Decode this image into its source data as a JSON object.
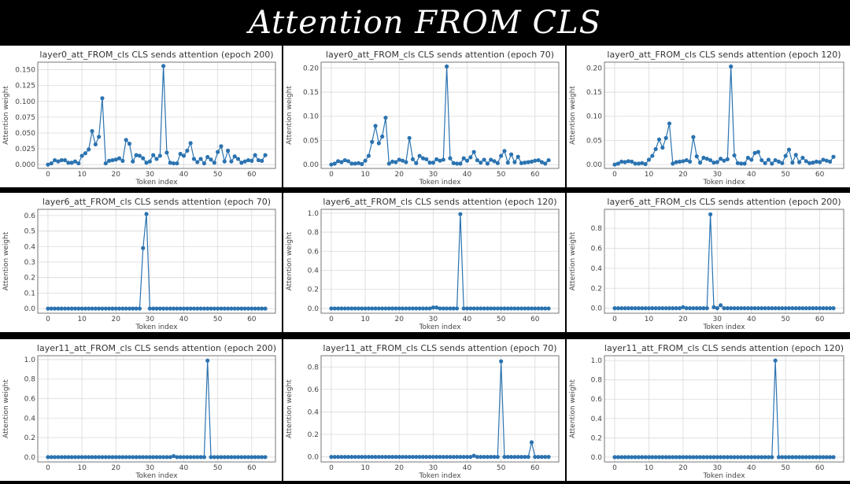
{
  "banner": {
    "title": "Attention FROM CLS"
  },
  "colors": {
    "series": "#2b73b0",
    "grid": "#d9d9d9",
    "frame": "#555555"
  },
  "chart_data": [
    {
      "type": "line",
      "row": 0,
      "title": "layer0_att_FROM_cls CLS sends attention (epoch 200)",
      "xlabel": "Token index",
      "ylabel": "Attention weight",
      "xlim": [
        -3,
        67
      ],
      "ylim": [
        -0.006,
        0.162
      ],
      "xticks": [
        0,
        10,
        20,
        30,
        40,
        50,
        60
      ],
      "yticks": [
        0.0,
        0.025,
        0.05,
        0.075,
        0.1,
        0.125,
        0.15
      ],
      "ytick_labels": [
        "0.000",
        "0.025",
        "0.050",
        "0.075",
        "0.100",
        "0.125",
        "0.150"
      ],
      "grid": true,
      "y": [
        0.0,
        0.002,
        0.007,
        0.005,
        0.007,
        0.007,
        0.003,
        0.003,
        0.005,
        0.002,
        0.014,
        0.018,
        0.024,
        0.053,
        0.032,
        0.044,
        0.105,
        0.002,
        0.006,
        0.007,
        0.008,
        0.01,
        0.006,
        0.039,
        0.033,
        0.005,
        0.015,
        0.014,
        0.01,
        0.003,
        0.005,
        0.015,
        0.009,
        0.014,
        0.156,
        0.019,
        0.003,
        0.002,
        0.002,
        0.017,
        0.014,
        0.022,
        0.034,
        0.009,
        0.004,
        0.009,
        0.002,
        0.012,
        0.008,
        0.003,
        0.02,
        0.029,
        0.005,
        0.022,
        0.005,
        0.013,
        0.009,
        0.003,
        0.005,
        0.007,
        0.006,
        0.015,
        0.007,
        0.006,
        0.015
      ]
    },
    {
      "type": "line",
      "row": 0,
      "title": "layer0_att_FROM_cls CLS sends attention (epoch 70)",
      "xlabel": "Token index",
      "ylabel": "Attention weight",
      "xlim": [
        -3,
        67
      ],
      "ylim": [
        -0.008,
        0.212
      ],
      "xticks": [
        0,
        10,
        20,
        30,
        40,
        50,
        60
      ],
      "yticks": [
        0.0,
        0.05,
        0.1,
        0.15,
        0.2
      ],
      "ytick_labels": [
        "0.00",
        "0.05",
        "0.10",
        "0.15",
        "0.20"
      ],
      "grid": true,
      "y": [
        0.0,
        0.002,
        0.007,
        0.005,
        0.009,
        0.007,
        0.002,
        0.002,
        0.003,
        0.001,
        0.008,
        0.018,
        0.047,
        0.08,
        0.044,
        0.058,
        0.097,
        0.002,
        0.006,
        0.005,
        0.01,
        0.008,
        0.005,
        0.055,
        0.011,
        0.003,
        0.018,
        0.013,
        0.011,
        0.004,
        0.004,
        0.011,
        0.008,
        0.01,
        0.203,
        0.013,
        0.003,
        0.002,
        0.002,
        0.013,
        0.008,
        0.015,
        0.026,
        0.009,
        0.004,
        0.01,
        0.002,
        0.01,
        0.007,
        0.003,
        0.018,
        0.028,
        0.004,
        0.021,
        0.005,
        0.016,
        0.003,
        0.004,
        0.005,
        0.006,
        0.008,
        0.009,
        0.005,
        0.002,
        0.009
      ]
    },
    {
      "type": "line",
      "row": 0,
      "title": "layer0_att_FROM_cls CLS sends attention (epoch 120)",
      "xlabel": "Token index",
      "ylabel": "Attention weight",
      "xlim": [
        -3,
        67
      ],
      "ylim": [
        -0.008,
        0.212
      ],
      "xticks": [
        0,
        10,
        20,
        30,
        40,
        50,
        60
      ],
      "yticks": [
        0.0,
        0.05,
        0.1,
        0.15,
        0.2
      ],
      "ytick_labels": [
        "0.00",
        "0.05",
        "0.10",
        "0.15",
        "0.20"
      ],
      "grid": true,
      "y": [
        0.0,
        0.002,
        0.006,
        0.005,
        0.007,
        0.006,
        0.002,
        0.002,
        0.003,
        0.001,
        0.01,
        0.018,
        0.032,
        0.052,
        0.035,
        0.055,
        0.085,
        0.002,
        0.005,
        0.006,
        0.007,
        0.009,
        0.006,
        0.057,
        0.017,
        0.004,
        0.014,
        0.012,
        0.009,
        0.004,
        0.005,
        0.012,
        0.008,
        0.011,
        0.203,
        0.019,
        0.003,
        0.002,
        0.002,
        0.014,
        0.01,
        0.024,
        0.026,
        0.009,
        0.003,
        0.01,
        0.002,
        0.009,
        0.006,
        0.003,
        0.018,
        0.031,
        0.004,
        0.02,
        0.005,
        0.014,
        0.007,
        0.003,
        0.004,
        0.006,
        0.005,
        0.01,
        0.008,
        0.006,
        0.016
      ]
    },
    {
      "type": "line",
      "row": 1,
      "title": "layer6_att_FROM_cls CLS sends attention (epoch 70)",
      "xlabel": "Token index",
      "ylabel": "Attention weight",
      "xlim": [
        -3,
        67
      ],
      "ylim": [
        -0.03,
        0.64
      ],
      "xticks": [
        0,
        10,
        20,
        30,
        40,
        50,
        60
      ],
      "yticks": [
        0.0,
        0.1,
        0.2,
        0.3,
        0.4,
        0.5,
        0.6
      ],
      "ytick_labels": [
        "0.0",
        "0.1",
        "0.2",
        "0.3",
        "0.4",
        "0.5",
        "0.6"
      ],
      "grid": true,
      "y": [
        0,
        0,
        0,
        0,
        0,
        0,
        0,
        0,
        0,
        0,
        0,
        0,
        0,
        0,
        0,
        0,
        0,
        0,
        0,
        0,
        0,
        0,
        0,
        0,
        0,
        0,
        0,
        0,
        0.39,
        0.61,
        0,
        0,
        0,
        0,
        0,
        0,
        0,
        0,
        0,
        0,
        0,
        0,
        0,
        0,
        0,
        0,
        0,
        0,
        0,
        0,
        0,
        0,
        0,
        0,
        0,
        0,
        0,
        0,
        0,
        0,
        0,
        0,
        0,
        0,
        0
      ]
    },
    {
      "type": "line",
      "row": 1,
      "title": "layer6_att_FROM_cls CLS sends attention (epoch 120)",
      "xlabel": "Token index",
      "ylabel": "Attention weight",
      "xlim": [
        -3,
        67
      ],
      "ylim": [
        -0.05,
        1.04
      ],
      "xticks": [
        0,
        10,
        20,
        30,
        40,
        50,
        60
      ],
      "yticks": [
        0.0,
        0.2,
        0.4,
        0.6,
        0.8,
        1.0
      ],
      "ytick_labels": [
        "0.0",
        "0.2",
        "0.4",
        "0.6",
        "0.8",
        "1.0"
      ],
      "grid": true,
      "y": [
        0,
        0,
        0,
        0,
        0,
        0,
        0,
        0,
        0,
        0,
        0,
        0,
        0,
        0,
        0,
        0,
        0,
        0,
        0,
        0,
        0,
        0,
        0,
        0,
        0,
        0,
        0,
        0,
        0,
        0,
        0.01,
        0.01,
        0,
        0,
        0,
        0,
        0,
        0,
        0.99,
        0,
        0,
        0,
        0,
        0,
        0,
        0,
        0,
        0,
        0,
        0,
        0,
        0,
        0,
        0,
        0,
        0,
        0,
        0,
        0,
        0,
        0,
        0,
        0,
        0,
        0
      ]
    },
    {
      "type": "line",
      "row": 1,
      "title": "layer6_att_FROM_cls CLS sends attention (epoch 200)",
      "xlabel": "Token index",
      "ylabel": "Attention weight",
      "xlim": [
        -3,
        67
      ],
      "ylim": [
        -0.05,
        0.99
      ],
      "xticks": [
        0,
        10,
        20,
        30,
        40,
        50,
        60
      ],
      "yticks": [
        0.0,
        0.2,
        0.4,
        0.6,
        0.8
      ],
      "ytick_labels": [
        "0.0",
        "0.2",
        "0.4",
        "0.6",
        "0.8"
      ],
      "grid": true,
      "y": [
        0,
        0,
        0,
        0,
        0,
        0,
        0,
        0,
        0,
        0,
        0,
        0,
        0,
        0,
        0,
        0,
        0,
        0,
        0,
        0,
        0.01,
        0,
        0,
        0,
        0,
        0,
        0,
        0,
        0.94,
        0.01,
        0,
        0.03,
        0,
        0,
        0,
        0,
        0,
        0,
        0,
        0,
        0,
        0,
        0,
        0,
        0,
        0,
        0,
        0,
        0,
        0,
        0,
        0,
        0,
        0,
        0,
        0,
        0,
        0,
        0,
        0,
        0,
        0,
        0,
        0,
        0
      ]
    },
    {
      "type": "line",
      "row": 2,
      "title": "layer11_att_FROM_cls CLS sends attention (epoch 200)",
      "xlabel": "Token index",
      "ylabel": "Attention weight",
      "xlim": [
        -3,
        67
      ],
      "ylim": [
        -0.05,
        1.04
      ],
      "xticks": [
        0,
        10,
        20,
        30,
        40,
        50,
        60
      ],
      "yticks": [
        0.0,
        0.2,
        0.4,
        0.6,
        0.8,
        1.0
      ],
      "ytick_labels": [
        "0.0",
        "0.2",
        "0.4",
        "0.6",
        "0.8",
        "1.0"
      ],
      "grid": true,
      "y": [
        0,
        0,
        0,
        0,
        0,
        0,
        0,
        0,
        0,
        0,
        0,
        0,
        0,
        0,
        0,
        0,
        0,
        0,
        0,
        0,
        0,
        0,
        0,
        0,
        0,
        0,
        0,
        0,
        0,
        0,
        0,
        0,
        0,
        0,
        0,
        0,
        0,
        0.01,
        0,
        0,
        0,
        0,
        0,
        0,
        0,
        0,
        0,
        0.99,
        0,
        0,
        0,
        0,
        0,
        0,
        0,
        0,
        0,
        0,
        0,
        0,
        0,
        0,
        0,
        0,
        0
      ]
    },
    {
      "type": "line",
      "row": 2,
      "title": "layer11_att_FROM_cls CLS sends attention (epoch 70)",
      "xlabel": "Token index",
      "ylabel": "Attention weight",
      "xlim": [
        -3,
        67
      ],
      "ylim": [
        -0.045,
        0.9
      ],
      "xticks": [
        0,
        10,
        20,
        30,
        40,
        50,
        60
      ],
      "yticks": [
        0.0,
        0.2,
        0.4,
        0.6,
        0.8
      ],
      "ytick_labels": [
        "0.0",
        "0.2",
        "0.4",
        "0.6",
        "0.8"
      ],
      "grid": true,
      "y": [
        0,
        0,
        0,
        0,
        0,
        0,
        0,
        0,
        0,
        0,
        0,
        0,
        0,
        0,
        0,
        0,
        0,
        0,
        0,
        0,
        0,
        0,
        0,
        0,
        0,
        0,
        0,
        0,
        0,
        0,
        0,
        0,
        0,
        0,
        0,
        0,
        0,
        0,
        0,
        0,
        0,
        0,
        0.01,
        0,
        0,
        0,
        0,
        0,
        0,
        0,
        0.85,
        0,
        0,
        0,
        0,
        0,
        0,
        0,
        0,
        0.13,
        0,
        0,
        0,
        0,
        0
      ]
    },
    {
      "type": "line",
      "row": 2,
      "title": "layer11_att_FROM_cls CLS sends attention (epoch 120)",
      "xlabel": "Token index",
      "ylabel": "Attention weight",
      "xlim": [
        -3,
        67
      ],
      "ylim": [
        -0.05,
        1.05
      ],
      "xticks": [
        0,
        10,
        20,
        30,
        40,
        50,
        60
      ],
      "yticks": [
        0.0,
        0.2,
        0.4,
        0.6,
        0.8,
        1.0
      ],
      "ytick_labels": [
        "0.0",
        "0.2",
        "0.4",
        "0.6",
        "0.8",
        "1.0"
      ],
      "grid": true,
      "y": [
        0,
        0,
        0,
        0,
        0,
        0,
        0,
        0,
        0,
        0,
        0,
        0,
        0,
        0,
        0,
        0,
        0,
        0,
        0,
        0,
        0,
        0,
        0,
        0,
        0,
        0,
        0,
        0,
        0,
        0,
        0,
        0,
        0,
        0,
        0,
        0,
        0,
        0,
        0,
        0,
        0,
        0,
        0,
        0,
        0,
        0,
        0,
        1.0,
        0,
        0,
        0,
        0,
        0,
        0,
        0,
        0,
        0,
        0,
        0,
        0,
        0,
        0,
        0,
        0,
        0
      ]
    }
  ]
}
